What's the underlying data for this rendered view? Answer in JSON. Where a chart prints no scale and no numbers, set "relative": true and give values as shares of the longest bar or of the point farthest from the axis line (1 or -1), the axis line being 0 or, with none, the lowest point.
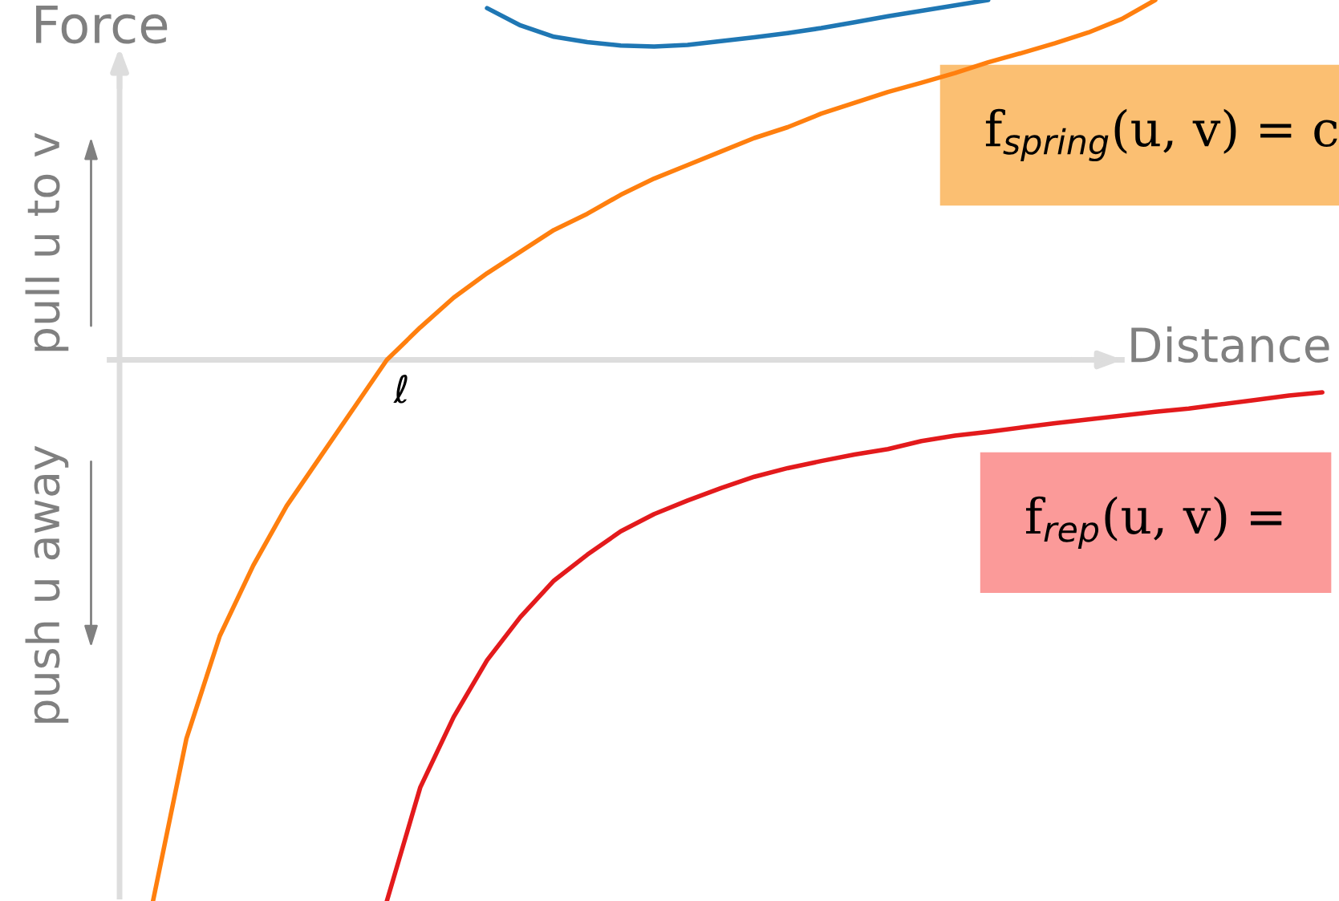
{
  "chart_data": {
    "type": "line",
    "relative": true,
    "xlabel": "Distance",
    "ylabel": "Force",
    "categories": [
      null,
      null,
      null,
      null,
      null,
      null,
      null,
      null,
      null,
      null,
      null,
      null,
      null,
      null,
      null,
      null,
      null,
      null,
      null,
      null,
      null,
      null,
      null,
      null,
      null,
      null,
      null,
      null,
      null,
      null,
      null,
      null,
      null,
      null,
      null,
      null
    ],
    "series": [
      {
        "color": "#1f77b4",
        "values": [
          null,
          null,
          null,
          null,
          null,
          null,
          null,
          null,
          null,
          null,
          0.65,
          0.618,
          0.597,
          0.587,
          0.581,
          0.579,
          0.582,
          0.589,
          0.596,
          0.604,
          0.613,
          0.624,
          0.635,
          0.645,
          0.655,
          0.665,
          null,
          null,
          null,
          null,
          null,
          null,
          null,
          null,
          null,
          null
        ]
      },
      {
        "color": "#ff7f0e",
        "values": [
          -1.0,
          -0.7,
          -0.51,
          -0.38,
          -0.27,
          -0.18,
          -0.09,
          0,
          0.06,
          0.115,
          0.16,
          0.2,
          0.24,
          0.27,
          0.305,
          0.335,
          0.36,
          0.385,
          0.41,
          0.43,
          0.455,
          0.475,
          0.495,
          0.512,
          0.53,
          0.55,
          0.567,
          0.585,
          0.605,
          0.63,
          0.665,
          null,
          null,
          null,
          null,
          null
        ]
      },
      {
        "color": "#e31a1c",
        "values": [
          null,
          null,
          null,
          null,
          null,
          null,
          null,
          -1.0,
          -0.79,
          -0.66,
          -0.555,
          -0.475,
          -0.408,
          -0.36,
          -0.317,
          -0.285,
          -0.26,
          -0.237,
          -0.216,
          -0.2,
          -0.187,
          -0.175,
          -0.165,
          -0.15,
          -0.14,
          -0.133,
          -0.125,
          -0.117,
          -0.11,
          -0.103,
          -0.096,
          -0.09,
          -0.082,
          -0.074,
          -0.066,
          -0.06
        ]
      }
    ],
    "annotations": [
      "ℓ",
      "pull u to v",
      "push u away",
      "f$_{spring}$(u, v) = c",
      "f$_{rep}$(u, v) ="
    ],
    "legend": false,
    "line_style": "solid",
    "marker": "none"
  }
}
